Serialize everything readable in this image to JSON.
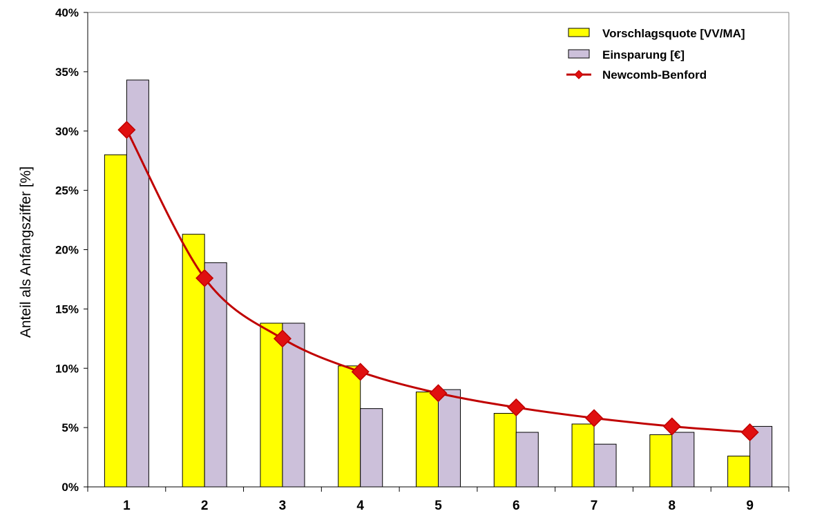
{
  "chart_data": {
    "type": "bar",
    "title": "",
    "xlabel": "",
    "ylabel": "Anteil als Anfangsziffer [%]",
    "ylim": [
      0,
      40
    ],
    "yticks": [
      "0%",
      "5%",
      "10%",
      "15%",
      "20%",
      "25%",
      "30%",
      "35%",
      "40%"
    ],
    "categories": [
      "1",
      "2",
      "3",
      "4",
      "5",
      "6",
      "7",
      "8",
      "9"
    ],
    "series": [
      {
        "name": "Vorschlagsquote [VV/MA]",
        "kind": "bar",
        "values": [
          28.0,
          21.3,
          13.8,
          10.2,
          8.0,
          6.2,
          5.3,
          4.4,
          2.6
        ]
      },
      {
        "name": "Einsparung [€]",
        "kind": "bar",
        "values": [
          34.3,
          18.9,
          13.8,
          6.6,
          8.2,
          4.6,
          3.6,
          4.6,
          5.1
        ]
      },
      {
        "name": "Newcomb-Benford",
        "kind": "line",
        "values": [
          30.1,
          17.6,
          12.5,
          9.7,
          7.9,
          6.7,
          5.8,
          5.1,
          4.6
        ]
      }
    ],
    "colors": {
      "bar1": "#ffff00",
      "bar2": "#ccc0da",
      "line": "#c00000",
      "marker": "#e01010"
    },
    "legend_position": "top-right"
  }
}
